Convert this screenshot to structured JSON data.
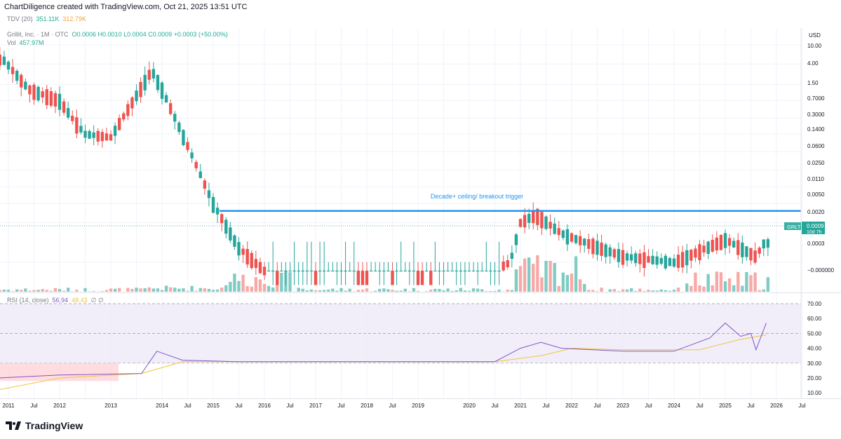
{
  "header": {
    "credit": "ChartDiligence created with TradingView.com, Oct 21, 2025 13:51 UTC"
  },
  "indicators": {
    "tdv_label": "TDV (20)",
    "tdv_value1": "351.11K",
    "tdv_value2": "312.79K",
    "symbol_line": "Grillit, Inc. · 1M · OTC",
    "ohlc": "O0.0006  H0.0010  L0.0004  C0.0009  +0.0003 (+50.00%)",
    "vol_label": "Vol",
    "vol_value": "457.97M",
    "rsi_label": "RSI (14, close)",
    "rsi_value": "56.94",
    "rsi_ma_value": "48.43",
    "rsi_extra": "∅  ∅"
  },
  "price_scale": {
    "currency": "USD",
    "ticks": [
      "10.00",
      "4.00",
      "1.50",
      "0.7000",
      "0.3000",
      "0.1400",
      "0.0600",
      "0.0250",
      "0.0110",
      "0.0050",
      "0.0020",
      "0.0003",
      "−0.000000"
    ],
    "last_symbol": "GRLT",
    "last_price": "0.0009",
    "countdown": "10d 7h"
  },
  "rsi_scale": {
    "ticks": [
      "70.00",
      "60.00",
      "50.00",
      "40.00",
      "30.00",
      "20.00",
      "10.00"
    ]
  },
  "time_axis": {
    "labels": [
      "2011",
      "Jul",
      "2012",
      "2013",
      "2014",
      "Jul",
      "2015",
      "Jul",
      "2016",
      "Jul",
      "2017",
      "Jul",
      "2018",
      "Jul",
      "2019",
      "2020",
      "Jul",
      "2021",
      "Jul",
      "2022",
      "Jul",
      "2023",
      "Jul",
      "2024",
      "Jul",
      "2025",
      "Jul",
      "2026",
      "Jul"
    ]
  },
  "annotation": {
    "text": "Decade+ ceiling/ breakout trigger",
    "level": 0.0035
  },
  "brand": {
    "text": "TradingView"
  },
  "colors": {
    "up": "#26a69a",
    "down": "#ef5350",
    "up_volume": "#80cbc4",
    "down_volume": "#f7a9a7",
    "annotation_line": "#2196f3",
    "rsi_line": "#7e57c2",
    "rsi_ma": "#f2c43d",
    "rsi_band": "#ede7f6",
    "tdv_green": "#22ab94",
    "tdv_orange": "#f2a33c"
  },
  "chart_data": {
    "type": "candlestick",
    "interval": "1M",
    "y_scale": "log",
    "anchors": [
      {
        "date": "2010.9",
        "open": 6.0,
        "high": 7.0,
        "low": 4.0,
        "close": 5.0
      },
      {
        "date": "2011.4",
        "open": 2.5,
        "high": 3.5,
        "low": 0.8,
        "close": 1.2
      },
      {
        "date": "2012.0",
        "open": 1.0,
        "high": 2.0,
        "low": 0.5,
        "close": 0.7
      },
      {
        "date": "2012.3",
        "open": 1.5,
        "high": 1.8,
        "low": 0.12,
        "close": 0.25
      },
      {
        "date": "2012.5",
        "open": 0.25,
        "high": 0.3,
        "low": 0.12,
        "close": 0.14
      },
      {
        "date": "2013.0",
        "open": 0.14,
        "high": 0.14,
        "low": 0.12,
        "close": 0.12
      },
      {
        "date": "2013.8",
        "open": 0.3,
        "high": 8.0,
        "low": 0.3,
        "close": 3.0
      },
      {
        "date": "2014.0",
        "open": 3.0,
        "high": 3.5,
        "low": 1.0,
        "close": 1.2
      },
      {
        "date": "2014.5",
        "open": 0.1,
        "high": 0.2,
        "low": 0.05,
        "close": 0.08
      },
      {
        "date": "2015.0",
        "open": 0.008,
        "high": 0.012,
        "low": 0.004,
        "close": 0.005
      },
      {
        "date": "2015.5",
        "open": 0.001,
        "high": 0.002,
        "low": 0.0004,
        "close": 0.0006
      },
      {
        "date": "2016.0",
        "open": 0.0002,
        "high": 0.0004,
        "low": 0.0001,
        "close": 0.0002
      },
      {
        "date": "2019.9",
        "open": 0.0001,
        "high": 0.0002,
        "low": 0.0001,
        "close": 0.0001
      },
      {
        "date": "2020.8",
        "open": 0.0002,
        "high": 0.0004,
        "low": 0.0001,
        "close": 0.0003
      },
      {
        "date": "2021.0",
        "open": 0.0008,
        "high": 0.003,
        "low": 0.0006,
        "close": 0.002
      },
      {
        "date": "2021.3",
        "open": 0.003,
        "high": 0.008,
        "low": 0.002,
        "close": 0.003
      },
      {
        "date": "2021.8",
        "open": 0.0015,
        "high": 0.003,
        "low": 0.001,
        "close": 0.0012
      },
      {
        "date": "2023.0",
        "open": 0.0004,
        "high": 0.0006,
        "low": 0.0003,
        "close": 0.0004
      },
      {
        "date": "2024.0",
        "open": 0.0002,
        "high": 0.0004,
        "low": 0.0001,
        "close": 0.0003
      },
      {
        "date": "2025.0",
        "open": 0.0007,
        "high": 0.0012,
        "low": 0.0005,
        "close": 0.0009
      },
      {
        "date": "2025.6",
        "open": 0.0003,
        "high": 0.0006,
        "low": 0.0002,
        "close": 0.0004
      },
      {
        "date": "2025.8",
        "open": 0.0006,
        "high": 0.001,
        "low": 0.0004,
        "close": 0.0009
      }
    ],
    "rsi": {
      "x": [
        2010.8,
        2012.0,
        2013.6,
        2013.9,
        2014.4,
        2015.5,
        2020.5,
        2021.0,
        2021.4,
        2021.8,
        2023.0,
        2024.0,
        2024.7,
        2025.0,
        2025.3,
        2025.5,
        2025.6,
        2025.8
      ],
      "y": [
        20,
        22,
        23,
        38,
        32,
        31,
        31,
        40,
        44,
        40,
        38,
        38,
        47,
        57,
        48,
        50,
        39,
        57
      ]
    },
    "rsi_ma": {
      "x": [
        2010.8,
        2012.0,
        2013.6,
        2014.4,
        2016.0,
        2020.5,
        2021.4,
        2022.0,
        2023.0,
        2024.5,
        2025.3,
        2025.8
      ],
      "y": [
        12,
        20,
        23,
        31,
        31,
        31,
        35,
        40,
        39,
        39,
        46,
        49
      ]
    }
  }
}
